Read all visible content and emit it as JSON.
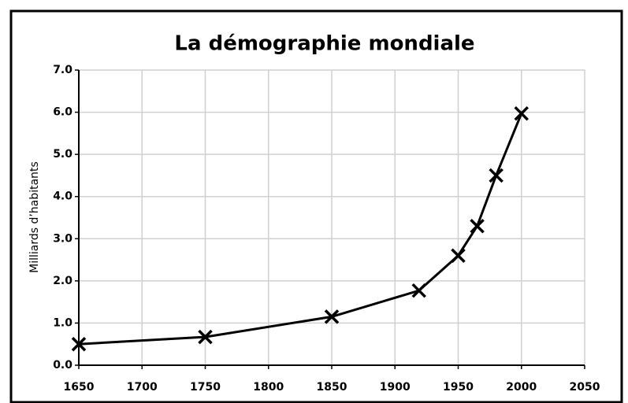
{
  "chart_data": {
    "type": "line",
    "title": "La démographie mondiale",
    "ylabel": "Milliards d’habitants",
    "x": [
      1650,
      1750,
      1850,
      1919,
      1950,
      1965,
      1980,
      2000
    ],
    "series": [
      {
        "name": null,
        "color": "#000000",
        "values": [
          0.5,
          0.67,
          1.15,
          1.77,
          2.6,
          3.3,
          4.5,
          5.97
        ]
      }
    ],
    "xlim": [
      1650,
      2050
    ],
    "xticks": [
      1650,
      1700,
      1750,
      1800,
      1850,
      1900,
      1950,
      2000,
      2050
    ],
    "ylim": [
      0,
      7
    ],
    "yticks": [
      {
        "value": 0,
        "label": "0.0"
      },
      {
        "value": 1,
        "label": "1.0"
      },
      {
        "value": 2,
        "label": "2.0"
      },
      {
        "value": 3,
        "label": "3.0"
      },
      {
        "value": 4,
        "label": "4.0"
      },
      {
        "value": 5,
        "label": "5.0"
      },
      {
        "value": 6,
        "label": "6.0"
      },
      {
        "value": 7,
        "label": "7.0"
      }
    ],
    "grid": true,
    "marker": "x"
  }
}
